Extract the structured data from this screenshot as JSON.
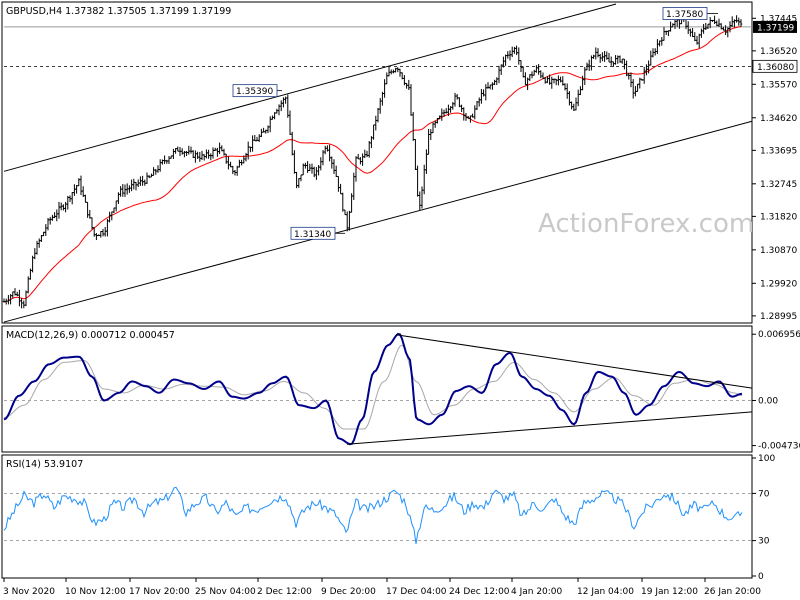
{
  "chart_data": [
    {
      "type": "candlestick",
      "title": "GBPUSD,H4  1.37382 1.37505 1.37199 1.37199",
      "y_ticks": [
        "1.37445",
        "1.36520",
        "1.35570",
        "1.34620",
        "1.33695",
        "1.32745",
        "1.31820",
        "1.30870",
        "1.29920",
        "1.28995"
      ],
      "ylim": [
        1.2885,
        1.3785
      ],
      "current_price": "1.37199",
      "support_level": "1.36080",
      "annotations": [
        {
          "label": "1.35390",
          "value": 1.3539
        },
        {
          "label": "1.31340",
          "value": 1.3134
        },
        {
          "label": "1.37580",
          "value": 1.3758
        }
      ],
      "moving_average": "red line",
      "channel": "ascending parallel channel",
      "watermark": "ActionForex.com",
      "price_path": [
        {
          "x": 0,
          "y": 1.294
        },
        {
          "x": 10,
          "y": 1.2968
        },
        {
          "x": 20,
          "y": 1.2935
        },
        {
          "x": 30,
          "y": 1.308
        },
        {
          "x": 45,
          "y": 1.317
        },
        {
          "x": 60,
          "y": 1.3215
        },
        {
          "x": 75,
          "y": 1.328
        },
        {
          "x": 90,
          "y": 1.313
        },
        {
          "x": 100,
          "y": 1.314
        },
        {
          "x": 115,
          "y": 1.325
        },
        {
          "x": 130,
          "y": 1.327
        },
        {
          "x": 145,
          "y": 1.329
        },
        {
          "x": 160,
          "y": 1.334
        },
        {
          "x": 175,
          "y": 1.3375
        },
        {
          "x": 185,
          "y": 1.336
        },
        {
          "x": 200,
          "y": 1.335
        },
        {
          "x": 215,
          "y": 1.3375
        },
        {
          "x": 230,
          "y": 1.3305
        },
        {
          "x": 245,
          "y": 1.338
        },
        {
          "x": 260,
          "y": 1.342
        },
        {
          "x": 270,
          "y": 1.348
        },
        {
          "x": 282,
          "y": 1.352
        },
        {
          "x": 292,
          "y": 1.326
        },
        {
          "x": 300,
          "y": 1.333
        },
        {
          "x": 312,
          "y": 1.33
        },
        {
          "x": 322,
          "y": 1.339
        },
        {
          "x": 333,
          "y": 1.329
        },
        {
          "x": 343,
          "y": 1.315
        },
        {
          "x": 352,
          "y": 1.334
        },
        {
          "x": 362,
          "y": 1.335
        },
        {
          "x": 372,
          "y": 1.346
        },
        {
          "x": 383,
          "y": 1.358
        },
        {
          "x": 393,
          "y": 1.361
        },
        {
          "x": 405,
          "y": 1.354
        },
        {
          "x": 415,
          "y": 1.319
        },
        {
          "x": 425,
          "y": 1.342
        },
        {
          "x": 438,
          "y": 1.347
        },
        {
          "x": 452,
          "y": 1.352
        },
        {
          "x": 465,
          "y": 1.345
        },
        {
          "x": 478,
          "y": 1.353
        },
        {
          "x": 490,
          "y": 1.356
        },
        {
          "x": 502,
          "y": 1.364
        },
        {
          "x": 512,
          "y": 1.366
        },
        {
          "x": 520,
          "y": 1.356
        },
        {
          "x": 532,
          "y": 1.36
        },
        {
          "x": 545,
          "y": 1.356
        },
        {
          "x": 558,
          "y": 1.357
        },
        {
          "x": 570,
          "y": 1.348
        },
        {
          "x": 580,
          "y": 1.359
        },
        {
          "x": 592,
          "y": 1.365
        },
        {
          "x": 605,
          "y": 1.362
        },
        {
          "x": 618,
          "y": 1.363
        },
        {
          "x": 630,
          "y": 1.353
        },
        {
          "x": 642,
          "y": 1.36
        },
        {
          "x": 655,
          "y": 1.368
        },
        {
          "x": 668,
          "y": 1.373
        },
        {
          "x": 680,
          "y": 1.374
        },
        {
          "x": 692,
          "y": 1.367
        },
        {
          "x": 700,
          "y": 1.372
        },
        {
          "x": 710,
          "y": 1.374
        },
        {
          "x": 722,
          "y": 1.371
        },
        {
          "x": 732,
          "y": 1.374
        },
        {
          "x": 738,
          "y": 1.372
        }
      ]
    },
    {
      "type": "line",
      "title": "MACD(12,26,9) 0.000712 0.000457",
      "y_ticks": [
        "0.006956",
        "0.00",
        "-0.004736"
      ],
      "ylim": [
        -0.0052,
        0.0074
      ],
      "series": [
        {
          "name": "MACD",
          "points": [
            {
              "x": 0,
              "y": -0.002
            },
            {
              "x": 15,
              "y": 0.0005
            },
            {
              "x": 30,
              "y": 0.002
            },
            {
              "x": 45,
              "y": 0.0038
            },
            {
              "x": 60,
              "y": 0.0045
            },
            {
              "x": 75,
              "y": 0.0046
            },
            {
              "x": 88,
              "y": 0.0025
            },
            {
              "x": 100,
              "y": 0.0
            },
            {
              "x": 115,
              "y": 0.0008
            },
            {
              "x": 128,
              "y": 0.002
            },
            {
              "x": 142,
              "y": 0.0015
            },
            {
              "x": 155,
              "y": 0.0008
            },
            {
              "x": 170,
              "y": 0.0022
            },
            {
              "x": 185,
              "y": 0.0018
            },
            {
              "x": 200,
              "y": 0.0012
            },
            {
              "x": 215,
              "y": 0.002
            },
            {
              "x": 228,
              "y": 0.0004
            },
            {
              "x": 240,
              "y": 0.0002
            },
            {
              "x": 255,
              "y": 0.0008
            },
            {
              "x": 268,
              "y": 0.0018
            },
            {
              "x": 282,
              "y": 0.0025
            },
            {
              "x": 295,
              "y": -0.0005
            },
            {
              "x": 310,
              "y": -0.0008
            },
            {
              "x": 322,
              "y": 0.0
            },
            {
              "x": 335,
              "y": -0.004
            },
            {
              "x": 347,
              "y": -0.0046
            },
            {
              "x": 358,
              "y": -0.002
            },
            {
              "x": 370,
              "y": 0.003
            },
            {
              "x": 384,
              "y": 0.0058
            },
            {
              "x": 395,
              "y": 0.007
            },
            {
              "x": 405,
              "y": 0.0045
            },
            {
              "x": 413,
              "y": -0.002
            },
            {
              "x": 425,
              "y": -0.0025
            },
            {
              "x": 438,
              "y": -0.0015
            },
            {
              "x": 452,
              "y": 0.001
            },
            {
              "x": 465,
              "y": 0.0015
            },
            {
              "x": 478,
              "y": 0.0008
            },
            {
              "x": 492,
              "y": 0.0038
            },
            {
              "x": 506,
              "y": 0.005
            },
            {
              "x": 518,
              "y": 0.0025
            },
            {
              "x": 532,
              "y": 0.0012
            },
            {
              "x": 545,
              "y": 0.0005
            },
            {
              "x": 558,
              "y": -0.001
            },
            {
              "x": 570,
              "y": -0.0025
            },
            {
              "x": 582,
              "y": 0.0008
            },
            {
              "x": 594,
              "y": 0.003
            },
            {
              "x": 608,
              "y": 0.0025
            },
            {
              "x": 620,
              "y": 0.0008
            },
            {
              "x": 632,
              "y": -0.0015
            },
            {
              "x": 645,
              "y": -0.0005
            },
            {
              "x": 660,
              "y": 0.0015
            },
            {
              "x": 675,
              "y": 0.003
            },
            {
              "x": 690,
              "y": 0.0018
            },
            {
              "x": 703,
              "y": 0.0015
            },
            {
              "x": 715,
              "y": 0.002
            },
            {
              "x": 728,
              "y": 0.0004
            },
            {
              "x": 738,
              "y": 0.0007
            }
          ]
        },
        {
          "name": "Signal",
          "points": [
            {
              "x": 0,
              "y": -0.0018
            },
            {
              "x": 20,
              "y": -0.0005
            },
            {
              "x": 40,
              "y": 0.0022
            },
            {
              "x": 60,
              "y": 0.004
            },
            {
              "x": 80,
              "y": 0.0042
            },
            {
              "x": 100,
              "y": 0.0012
            },
            {
              "x": 120,
              "y": 0.0008
            },
            {
              "x": 140,
              "y": 0.0016
            },
            {
              "x": 160,
              "y": 0.0012
            },
            {
              "x": 180,
              "y": 0.0017
            },
            {
              "x": 200,
              "y": 0.0015
            },
            {
              "x": 220,
              "y": 0.0014
            },
            {
              "x": 240,
              "y": 0.0006
            },
            {
              "x": 260,
              "y": 0.001
            },
            {
              "x": 280,
              "y": 0.002
            },
            {
              "x": 300,
              "y": 0.0008
            },
            {
              "x": 320,
              "y": -0.0008
            },
            {
              "x": 340,
              "y": -0.003
            },
            {
              "x": 360,
              "y": -0.003
            },
            {
              "x": 380,
              "y": 0.002
            },
            {
              "x": 398,
              "y": 0.0058
            },
            {
              "x": 412,
              "y": 0.002
            },
            {
              "x": 430,
              "y": -0.0015
            },
            {
              "x": 450,
              "y": -0.0005
            },
            {
              "x": 470,
              "y": 0.0012
            },
            {
              "x": 490,
              "y": 0.002
            },
            {
              "x": 510,
              "y": 0.004
            },
            {
              "x": 530,
              "y": 0.0022
            },
            {
              "x": 550,
              "y": 0.0008
            },
            {
              "x": 570,
              "y": -0.0012
            },
            {
              "x": 590,
              "y": 0.0012
            },
            {
              "x": 610,
              "y": 0.0024
            },
            {
              "x": 630,
              "y": 0.0005
            },
            {
              "x": 650,
              "y": -0.0005
            },
            {
              "x": 670,
              "y": 0.0018
            },
            {
              "x": 690,
              "y": 0.0022
            },
            {
              "x": 710,
              "y": 0.0017
            },
            {
              "x": 730,
              "y": 0.0008
            },
            {
              "x": 738,
              "y": 0.0005
            }
          ]
        }
      ]
    },
    {
      "type": "line",
      "title": "RSI(14) 53.9107",
      "y_ticks": [
        "100",
        "70",
        "30",
        "0"
      ],
      "ylim": [
        0,
        100
      ],
      "series": [
        {
          "name": "RSI",
          "points": [
            {
              "x": 0,
              "y": 40
            },
            {
              "x": 10,
              "y": 55
            },
            {
              "x": 20,
              "y": 68
            },
            {
              "x": 30,
              "y": 62
            },
            {
              "x": 40,
              "y": 70
            },
            {
              "x": 50,
              "y": 58
            },
            {
              "x": 60,
              "y": 68
            },
            {
              "x": 70,
              "y": 66
            },
            {
              "x": 80,
              "y": 62
            },
            {
              "x": 90,
              "y": 45
            },
            {
              "x": 100,
              "y": 48
            },
            {
              "x": 110,
              "y": 62
            },
            {
              "x": 120,
              "y": 58
            },
            {
              "x": 130,
              "y": 66
            },
            {
              "x": 140,
              "y": 54
            },
            {
              "x": 150,
              "y": 62
            },
            {
              "x": 160,
              "y": 64
            },
            {
              "x": 172,
              "y": 75
            },
            {
              "x": 182,
              "y": 54
            },
            {
              "x": 192,
              "y": 62
            },
            {
              "x": 202,
              "y": 66
            },
            {
              "x": 212,
              "y": 54
            },
            {
              "x": 222,
              "y": 62
            },
            {
              "x": 232,
              "y": 50
            },
            {
              "x": 242,
              "y": 58
            },
            {
              "x": 252,
              "y": 56
            },
            {
              "x": 262,
              "y": 62
            },
            {
              "x": 272,
              "y": 66
            },
            {
              "x": 282,
              "y": 68
            },
            {
              "x": 292,
              "y": 45
            },
            {
              "x": 302,
              "y": 58
            },
            {
              "x": 312,
              "y": 62
            },
            {
              "x": 322,
              "y": 58
            },
            {
              "x": 332,
              "y": 52
            },
            {
              "x": 342,
              "y": 36
            },
            {
              "x": 352,
              "y": 62
            },
            {
              "x": 362,
              "y": 56
            },
            {
              "x": 372,
              "y": 60
            },
            {
              "x": 382,
              "y": 66
            },
            {
              "x": 392,
              "y": 72
            },
            {
              "x": 402,
              "y": 62
            },
            {
              "x": 412,
              "y": 30
            },
            {
              "x": 420,
              "y": 58
            },
            {
              "x": 430,
              "y": 56
            },
            {
              "x": 440,
              "y": 60
            },
            {
              "x": 450,
              "y": 68
            },
            {
              "x": 460,
              "y": 55
            },
            {
              "x": 470,
              "y": 62
            },
            {
              "x": 480,
              "y": 58
            },
            {
              "x": 490,
              "y": 72
            },
            {
              "x": 500,
              "y": 66
            },
            {
              "x": 510,
              "y": 68
            },
            {
              "x": 518,
              "y": 50
            },
            {
              "x": 530,
              "y": 62
            },
            {
              "x": 540,
              "y": 56
            },
            {
              "x": 550,
              "y": 66
            },
            {
              "x": 560,
              "y": 52
            },
            {
              "x": 570,
              "y": 44
            },
            {
              "x": 580,
              "y": 62
            },
            {
              "x": 590,
              "y": 66
            },
            {
              "x": 600,
              "y": 70
            },
            {
              "x": 610,
              "y": 66
            },
            {
              "x": 620,
              "y": 60
            },
            {
              "x": 630,
              "y": 42
            },
            {
              "x": 640,
              "y": 56
            },
            {
              "x": 650,
              "y": 62
            },
            {
              "x": 660,
              "y": 70
            },
            {
              "x": 670,
              "y": 66
            },
            {
              "x": 680,
              "y": 52
            },
            {
              "x": 690,
              "y": 60
            },
            {
              "x": 700,
              "y": 56
            },
            {
              "x": 710,
              "y": 62
            },
            {
              "x": 720,
              "y": 52
            },
            {
              "x": 730,
              "y": 48
            },
            {
              "x": 738,
              "y": 54
            }
          ]
        }
      ]
    }
  ],
  "x_axis": {
    "tick_labels": [
      "3 Nov 2020",
      "10 Nov 12:00",
      "17 Nov 20:00",
      "25 Nov 04:00",
      "2 Dec 12:00",
      "9 Dec 20:00",
      "17 Dec 04:00",
      "24 Dec 12:00",
      "4 Jan 20:00",
      "12 Jan 04:00",
      "19 Jan 12:00",
      "26 Jan 20:00"
    ]
  },
  "colors": {
    "price": "#000000",
    "ma": "#ff0000",
    "macd": "#00008b",
    "signal": "#a8a8a8",
    "rsi": "#1e90ff",
    "grid": "#888888"
  }
}
